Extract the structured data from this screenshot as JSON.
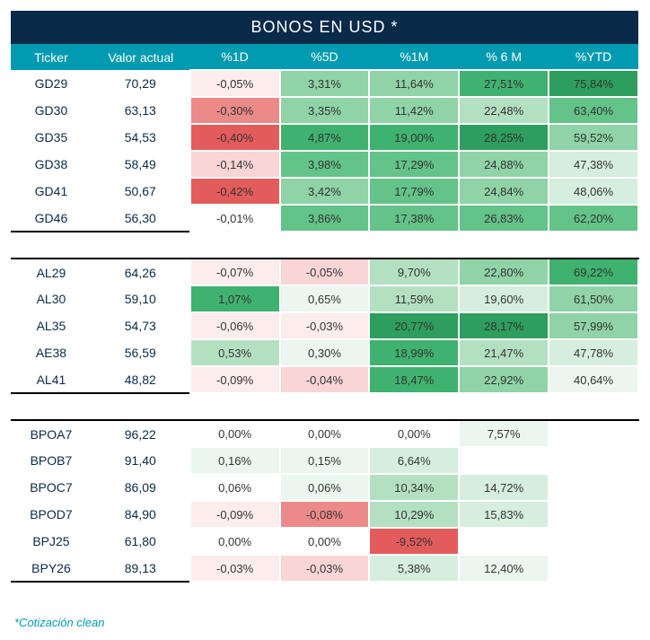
{
  "title": "BONOS EN USD *",
  "footnote": "*Cotización clean",
  "colors": {
    "title_bg": "#0a2a4a",
    "header_bg": "#009bb0",
    "text_dark": "#0a2a4a",
    "green_scale": [
      "#eaf6ef",
      "#d6eedd",
      "#b4e0c2",
      "#8fd3a7",
      "#63c389",
      "#3fb26f",
      "#2d9e5d"
    ],
    "red_scale": [
      "#fdecec",
      "#f9d5d5",
      "#f3b3b3",
      "#ec8a8a",
      "#e35c5c"
    ],
    "neutral": "#ffffff"
  },
  "columns": [
    {
      "key": "ticker",
      "label": "Ticker"
    },
    {
      "key": "valor",
      "label": "Valor actual"
    },
    {
      "key": "p1d",
      "label": "%1D"
    },
    {
      "key": "p5d",
      "label": "%5D"
    },
    {
      "key": "p1m",
      "label": "%1M"
    },
    {
      "key": "p6m",
      "label": "% 6 M"
    },
    {
      "key": "pytd",
      "label": "%YTD"
    }
  ],
  "groups": [
    {
      "rows": [
        {
          "ticker": "GD29",
          "valor": "70,29",
          "p1d": {
            "v": "-0,05%",
            "c": "#fdecec"
          },
          "p5d": {
            "v": "3,31%",
            "c": "#8fd3a7"
          },
          "p1m": {
            "v": "11,64%",
            "c": "#8fd3a7"
          },
          "p6m": {
            "v": "27,51%",
            "c": "#3fb26f"
          },
          "pytd": {
            "v": "75,84%",
            "c": "#2d9e5d"
          }
        },
        {
          "ticker": "GD30",
          "valor": "63,13",
          "p1d": {
            "v": "-0,30%",
            "c": "#ec8a8a"
          },
          "p5d": {
            "v": "3,35%",
            "c": "#8fd3a7"
          },
          "p1m": {
            "v": "11,42%",
            "c": "#8fd3a7"
          },
          "p6m": {
            "v": "22,48%",
            "c": "#b4e0c2"
          },
          "pytd": {
            "v": "63,40%",
            "c": "#63c389"
          }
        },
        {
          "ticker": "GD35",
          "valor": "54,53",
          "p1d": {
            "v": "-0,40%",
            "c": "#e35c5c"
          },
          "p5d": {
            "v": "4,87%",
            "c": "#3fb26f"
          },
          "p1m": {
            "v": "19,00%",
            "c": "#3fb26f"
          },
          "p6m": {
            "v": "28,25%",
            "c": "#2d9e5d"
          },
          "pytd": {
            "v": "59,52%",
            "c": "#8fd3a7"
          }
        },
        {
          "ticker": "GD38",
          "valor": "58,49",
          "p1d": {
            "v": "-0,14%",
            "c": "#f9d5d5"
          },
          "p5d": {
            "v": "3,98%",
            "c": "#63c389"
          },
          "p1m": {
            "v": "17,29%",
            "c": "#63c389"
          },
          "p6m": {
            "v": "24,88%",
            "c": "#8fd3a7"
          },
          "pytd": {
            "v": "47,38%",
            "c": "#d6eedd"
          }
        },
        {
          "ticker": "GD41",
          "valor": "50,67",
          "p1d": {
            "v": "-0,42%",
            "c": "#e35c5c"
          },
          "p5d": {
            "v": "3,42%",
            "c": "#8fd3a7"
          },
          "p1m": {
            "v": "17,79%",
            "c": "#63c389"
          },
          "p6m": {
            "v": "24,84%",
            "c": "#8fd3a7"
          },
          "pytd": {
            "v": "48,06%",
            "c": "#d6eedd"
          }
        },
        {
          "ticker": "GD46",
          "valor": "56,30",
          "p1d": {
            "v": "-0,01%",
            "c": "#ffffff"
          },
          "p5d": {
            "v": "3,86%",
            "c": "#63c389"
          },
          "p1m": {
            "v": "17,38%",
            "c": "#63c389"
          },
          "p6m": {
            "v": "26,83%",
            "c": "#63c389"
          },
          "pytd": {
            "v": "62,20%",
            "c": "#63c389"
          }
        }
      ]
    },
    {
      "rows": [
        {
          "ticker": "AL29",
          "valor": "64,26",
          "p1d": {
            "v": "-0,07%",
            "c": "#fdecec"
          },
          "p5d": {
            "v": "-0,05%",
            "c": "#f9d5d5"
          },
          "p1m": {
            "v": "9,70%",
            "c": "#b4e0c2"
          },
          "p6m": {
            "v": "22,80%",
            "c": "#8fd3a7"
          },
          "pytd": {
            "v": "69,22%",
            "c": "#3fb26f"
          }
        },
        {
          "ticker": "AL30",
          "valor": "59,10",
          "p1d": {
            "v": "1,07%",
            "c": "#3fb26f"
          },
          "p5d": {
            "v": "0,65%",
            "c": "#eaf6ef"
          },
          "p1m": {
            "v": "11,59%",
            "c": "#b4e0c2"
          },
          "p6m": {
            "v": "19,60%",
            "c": "#d6eedd"
          },
          "pytd": {
            "v": "61,50%",
            "c": "#8fd3a7"
          }
        },
        {
          "ticker": "AL35",
          "valor": "54,73",
          "p1d": {
            "v": "-0,06%",
            "c": "#fdecec"
          },
          "p5d": {
            "v": "-0,03%",
            "c": "#fdecec"
          },
          "p1m": {
            "v": "20,77%",
            "c": "#2d9e5d"
          },
          "p6m": {
            "v": "28,17%",
            "c": "#2d9e5d"
          },
          "pytd": {
            "v": "57,99%",
            "c": "#8fd3a7"
          }
        },
        {
          "ticker": "AE38",
          "valor": "56,59",
          "p1d": {
            "v": "0,53%",
            "c": "#b4e0c2"
          },
          "p5d": {
            "v": "0,30%",
            "c": "#eaf6ef"
          },
          "p1m": {
            "v": "18,99%",
            "c": "#3fb26f"
          },
          "p6m": {
            "v": "21,47%",
            "c": "#b4e0c2"
          },
          "pytd": {
            "v": "47,78%",
            "c": "#d6eedd"
          }
        },
        {
          "ticker": "AL41",
          "valor": "48,82",
          "p1d": {
            "v": "-0,09%",
            "c": "#fdecec"
          },
          "p5d": {
            "v": "-0,04%",
            "c": "#f9d5d5"
          },
          "p1m": {
            "v": "18,47%",
            "c": "#3fb26f"
          },
          "p6m": {
            "v": "22,92%",
            "c": "#8fd3a7"
          },
          "pytd": {
            "v": "40,64%",
            "c": "#eaf6ef"
          }
        }
      ]
    },
    {
      "rows": [
        {
          "ticker": "BPOA7",
          "valor": "96,22",
          "p1d": {
            "v": "0,00%",
            "c": "#ffffff"
          },
          "p5d": {
            "v": "0,00%",
            "c": "#ffffff"
          },
          "p1m": {
            "v": "0,00%",
            "c": "#ffffff"
          },
          "p6m": {
            "v": "7,57%",
            "c": "#eaf6ef"
          },
          "pytd": {
            "v": "",
            "c": "#ffffff"
          }
        },
        {
          "ticker": "BPOB7",
          "valor": "91,40",
          "p1d": {
            "v": "0,16%",
            "c": "#eaf6ef"
          },
          "p5d": {
            "v": "0,15%",
            "c": "#eaf6ef"
          },
          "p1m": {
            "v": "6,64%",
            "c": "#d6eedd"
          },
          "p6m": {
            "v": "",
            "c": "#ffffff"
          },
          "pytd": {
            "v": "",
            "c": "#ffffff"
          }
        },
        {
          "ticker": "BPOC7",
          "valor": "86,09",
          "p1d": {
            "v": "0,06%",
            "c": "#ffffff"
          },
          "p5d": {
            "v": "0,06%",
            "c": "#eaf6ef"
          },
          "p1m": {
            "v": "10,34%",
            "c": "#b4e0c2"
          },
          "p6m": {
            "v": "14,72%",
            "c": "#d6eedd"
          },
          "pytd": {
            "v": "",
            "c": "#ffffff"
          }
        },
        {
          "ticker": "BPOD7",
          "valor": "84,90",
          "p1d": {
            "v": "-0,09%",
            "c": "#fdecec"
          },
          "p5d": {
            "v": "-0,08%",
            "c": "#ec8a8a"
          },
          "p1m": {
            "v": "10,29%",
            "c": "#b4e0c2"
          },
          "p6m": {
            "v": "15,83%",
            "c": "#d6eedd"
          },
          "pytd": {
            "v": "",
            "c": "#ffffff"
          }
        },
        {
          "ticker": "BPJ25",
          "valor": "61,80",
          "p1d": {
            "v": "0,00%",
            "c": "#ffffff"
          },
          "p5d": {
            "v": "0,00%",
            "c": "#ffffff"
          },
          "p1m": {
            "v": "-9,52%",
            "c": "#e35c5c"
          },
          "p6m": {
            "v": "",
            "c": "#ffffff"
          },
          "pytd": {
            "v": "",
            "c": "#ffffff"
          }
        },
        {
          "ticker": "BPY26",
          "valor": "89,13",
          "p1d": {
            "v": "-0,03%",
            "c": "#fdecec"
          },
          "p5d": {
            "v": "-0,03%",
            "c": "#f9d5d5"
          },
          "p1m": {
            "v": "5,38%",
            "c": "#d6eedd"
          },
          "p6m": {
            "v": "12,40%",
            "c": "#eaf6ef"
          },
          "pytd": {
            "v": "",
            "c": "#ffffff"
          }
        }
      ]
    }
  ]
}
